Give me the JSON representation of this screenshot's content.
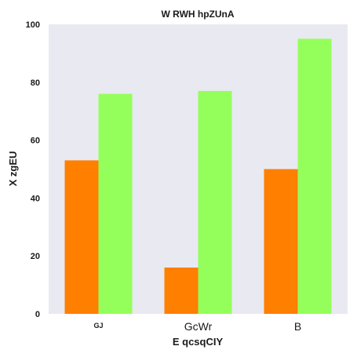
{
  "chart_data": {
    "type": "bar",
    "title": "W RWH hpZUnA",
    "xlabel": "E qcsqCIY",
    "ylabel": "X zgEU",
    "categories": [
      "GJ",
      "GcWr",
      "B"
    ],
    "series": [
      {
        "values": [
          53,
          16,
          50
        ],
        "color": "#ff7f00"
      },
      {
        "values": [
          76,
          77,
          95
        ],
        "color": "#94ff5a"
      }
    ],
    "ylim": [
      0,
      100
    ],
    "yticks": [
      "0",
      "20",
      "40",
      "60",
      "80",
      "100"
    ],
    "grid": false,
    "plot_background": "#e9e9f2"
  }
}
